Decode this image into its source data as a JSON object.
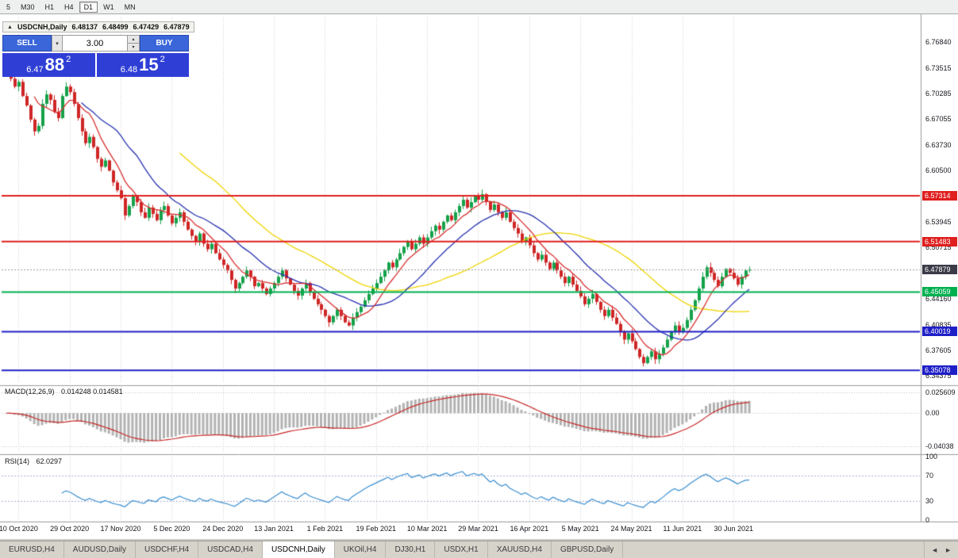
{
  "toolbar": {
    "timeframes": [
      {
        "label": "5",
        "active": false
      },
      {
        "label": "M30",
        "active": false
      },
      {
        "label": "H1",
        "active": false
      },
      {
        "label": "H4",
        "active": false
      },
      {
        "label": "D1",
        "active": true
      },
      {
        "label": "W1",
        "active": false
      },
      {
        "label": "MN",
        "active": false
      }
    ]
  },
  "chart_header": {
    "collapse_icon": "▲",
    "symbol": "USDCNH,Daily",
    "open": "6.48137",
    "high": "6.48499",
    "low": "6.47429",
    "close": "6.47879"
  },
  "trade_panel": {
    "sell_label": "SELL",
    "buy_label": "BUY",
    "lot_value": "3.00",
    "dropdown_icon": "▾",
    "spin_up_icon": "▴",
    "spin_down_icon": "▾",
    "sell_price": {
      "prefix": "6.47",
      "big": "88",
      "sup": "2"
    },
    "buy_price": {
      "prefix": "6.48",
      "big": "15",
      "sup": "2"
    }
  },
  "panes": {
    "macd": {
      "title": "MACD(12,26,9)",
      "values": "0.014248 0.014581",
      "axis_labels": [
        "0.025609",
        "0.00",
        "-0.04038"
      ]
    },
    "rsi": {
      "title": "RSI(14)",
      "value": "62.0297",
      "axis_labels": [
        "100",
        "70",
        "30",
        "0"
      ],
      "level_lines": [
        70,
        30
      ]
    }
  },
  "price_axis": {
    "ticks": [
      "6.76840",
      "6.73515",
      "6.70285",
      "6.67055",
      "6.63730",
      "6.60500",
      "6.53945",
      "6.50715",
      "6.44160",
      "6.40835",
      "6.37605",
      "6.34375"
    ]
  },
  "levels": [
    {
      "label": "6.57314",
      "value": 6.57314,
      "color": "#e01f1f"
    },
    {
      "label": "6.51483",
      "value": 6.51483,
      "color": "#e01f1f"
    },
    {
      "label": "6.45059",
      "value": 6.45059,
      "color": "#00b050"
    },
    {
      "label": "6.40019",
      "value": 6.40019,
      "color": "#1f1fc8"
    },
    {
      "label": "6.35078",
      "value": 6.35078,
      "color": "#1f1fc8"
    }
  ],
  "current_price": {
    "label": "6.47879",
    "value": 6.47879,
    "color": "#3a3a48"
  },
  "date_axis": {
    "labels": [
      {
        "label": "10 Oct 2020",
        "i": 3
      },
      {
        "label": "29 Oct 2020",
        "i": 16
      },
      {
        "label": "17 Nov 2020",
        "i": 29
      },
      {
        "label": "5 Dec 2020",
        "i": 42
      },
      {
        "label": "24 Dec 2020",
        "i": 55
      },
      {
        "label": "13 Jan 2021",
        "i": 68
      },
      {
        "label": "1 Feb 2021",
        "i": 81
      },
      {
        "label": "19 Feb 2021",
        "i": 94
      },
      {
        "label": "10 Mar 2021",
        "i": 107
      },
      {
        "label": "29 Mar 2021",
        "i": 120
      },
      {
        "label": "16 Apr 2021",
        "i": 133
      },
      {
        "label": "5 May 2021",
        "i": 146
      },
      {
        "label": "24 May 2021",
        "i": 159
      },
      {
        "label": "11 Jun 2021",
        "i": 172
      },
      {
        "label": "30 Jun 2021",
        "i": 185
      }
    ]
  },
  "tabbar": {
    "left_arrow": "◄",
    "right_arrow": "►",
    "tabs": [
      {
        "label": "EURUSD,H4",
        "active": false
      },
      {
        "label": "AUDUSD,Daily",
        "active": false
      },
      {
        "label": "USDCHF,H4",
        "active": false
      },
      {
        "label": "USDCAD,H4",
        "active": false
      },
      {
        "label": "USDCNH,Daily",
        "active": true
      },
      {
        "label": "UKOil,H4",
        "active": false
      },
      {
        "label": "DJ30,H1",
        "active": false
      },
      {
        "label": "USDX,H1",
        "active": false
      },
      {
        "label": "XAUUSD,H4",
        "active": false
      },
      {
        "label": "GBPUSD,Daily",
        "active": false
      }
    ]
  },
  "colors": {
    "bull": "#15a14a",
    "bear": "#cf2626",
    "macd_hist": "#b2b2b2",
    "macd_signal": "#c82828",
    "rsi_line": "#3a8fd0",
    "panel_blue": "#2f3fd6",
    "button_blue": "#3a66d9"
  },
  "chart_data": {
    "type": "candlestick",
    "symbol": "USDCNH",
    "timeframe": "Daily",
    "indicators": {
      "macd": {
        "fast": 12,
        "slow": 26,
        "signal": 9
      },
      "rsi": {
        "period": 14
      }
    },
    "ma_periods": [
      {
        "period": 8,
        "color": "#d93030"
      },
      {
        "period": 20,
        "color": "#2732b0"
      },
      {
        "period": 45,
        "color": "#efd500"
      }
    ],
    "price_range": {
      "top": 6.8,
      "bottom": 6.334
    },
    "closes": [
      6.73,
      6.722,
      6.712,
      6.718,
      6.7,
      6.688,
      6.67,
      6.655,
      6.662,
      6.69,
      6.702,
      6.695,
      6.68,
      6.672,
      6.7,
      6.712,
      6.705,
      6.69,
      6.672,
      6.655,
      6.64,
      6.648,
      6.635,
      6.62,
      6.61,
      6.618,
      6.605,
      6.59,
      6.58,
      6.57,
      6.548,
      6.56,
      6.572,
      6.565,
      6.552,
      6.545,
      6.558,
      6.55,
      6.542,
      6.555,
      6.56,
      6.548,
      6.538,
      6.545,
      6.552,
      6.54,
      6.53,
      6.522,
      6.515,
      6.525,
      6.512,
      6.505,
      6.512,
      6.5,
      6.492,
      6.485,
      6.478,
      6.466,
      6.455,
      6.462,
      6.47,
      6.478,
      6.47,
      6.458,
      6.462,
      6.455,
      6.448,
      6.455,
      6.462,
      6.47,
      6.478,
      6.468,
      6.46,
      6.452,
      6.446,
      6.455,
      6.462,
      6.45,
      6.442,
      6.435,
      6.428,
      6.42,
      6.412,
      6.42,
      6.428,
      6.42,
      6.412,
      6.408,
      6.418,
      6.425,
      6.432,
      6.44,
      6.448,
      6.455,
      6.462,
      6.47,
      6.478,
      6.488,
      6.482,
      6.492,
      6.5,
      6.508,
      6.515,
      6.505,
      6.512,
      6.52,
      6.512,
      6.52,
      6.528,
      6.535,
      6.53,
      6.54,
      6.548,
      6.542,
      6.552,
      6.56,
      6.568,
      6.558,
      6.565,
      6.572,
      6.568,
      6.575,
      6.565,
      6.555,
      6.562,
      6.552,
      6.545,
      6.552,
      6.54,
      6.532,
      6.525,
      6.515,
      6.52,
      6.51,
      6.5,
      6.492,
      6.498,
      6.488,
      6.48,
      6.488,
      6.478,
      6.47,
      6.462,
      6.47,
      6.46,
      6.452,
      6.445,
      6.435,
      6.442,
      6.448,
      6.438,
      6.428,
      6.42,
      6.428,
      6.418,
      6.41,
      6.4,
      6.39,
      6.398,
      6.388,
      6.378,
      6.368,
      6.36,
      6.368,
      6.375,
      6.365,
      6.372,
      6.38,
      6.39,
      6.4,
      6.408,
      6.4,
      6.405,
      6.415,
      6.428,
      6.44,
      6.455,
      6.47,
      6.482,
      6.475,
      6.466,
      6.458,
      6.47,
      6.48,
      6.475,
      6.468,
      6.46,
      6.47,
      6.478,
      6.479
    ]
  }
}
